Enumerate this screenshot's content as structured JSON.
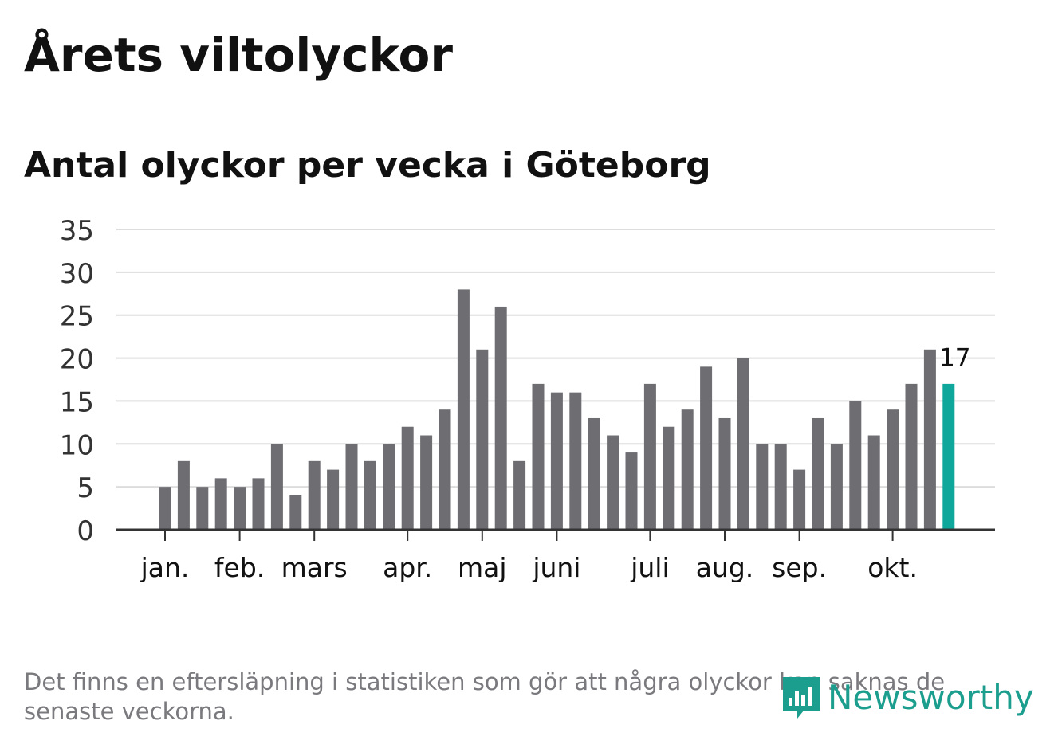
{
  "title": "Årets viltolyckor",
  "subtitle": "Antal olyckor per vecka i Göteborg",
  "note": "Det finns en eftersläpning i statistiken som gör att några olyckor kan saknas de senaste veckorna.",
  "logo": {
    "text": "Newsworthy",
    "icon": "newsworthy-bar-chart-icon"
  },
  "colors": {
    "bar": "#6e6d72",
    "highlight": "#0fa79b",
    "grid": "#dddddd",
    "axis": "#333333",
    "text": "#111111",
    "logo": "#1b9e8e"
  },
  "chart_data": {
    "type": "bar",
    "title": "Antal olyckor per vecka i Göteborg",
    "xlabel": "",
    "ylabel": "",
    "ylim": [
      0,
      35
    ],
    "yticks": [
      0,
      5,
      10,
      15,
      20,
      25,
      30,
      35
    ],
    "weeks": [
      1,
      2,
      3,
      4,
      5,
      6,
      7,
      8,
      9,
      10,
      11,
      12,
      13,
      14,
      15,
      16,
      17,
      18,
      19,
      20,
      21,
      22,
      23,
      24,
      25,
      26,
      27,
      28,
      29,
      30,
      31,
      32,
      33,
      34,
      35,
      36,
      37,
      38,
      39,
      40,
      41,
      42,
      43
    ],
    "values": [
      5,
      8,
      5,
      6,
      5,
      6,
      10,
      4,
      8,
      7,
      10,
      8,
      10,
      12,
      11,
      14,
      28,
      21,
      26,
      8,
      17,
      16,
      16,
      13,
      11,
      9,
      17,
      12,
      14,
      19,
      13,
      20,
      10,
      10,
      7,
      13,
      10,
      15,
      11,
      14,
      17,
      21,
      17
    ],
    "highlight_index": 42,
    "highlight_label": "17",
    "month_ticks": [
      {
        "label": "jan.",
        "week": 1
      },
      {
        "label": "feb.",
        "week": 5
      },
      {
        "label": "mars",
        "week": 9
      },
      {
        "label": "apr.",
        "week": 14
      },
      {
        "label": "maj",
        "week": 18
      },
      {
        "label": "juni",
        "week": 22
      },
      {
        "label": "juli",
        "week": 27
      },
      {
        "label": "aug.",
        "week": 31
      },
      {
        "label": "sep.",
        "week": 35
      },
      {
        "label": "okt.",
        "week": 40
      }
    ]
  }
}
